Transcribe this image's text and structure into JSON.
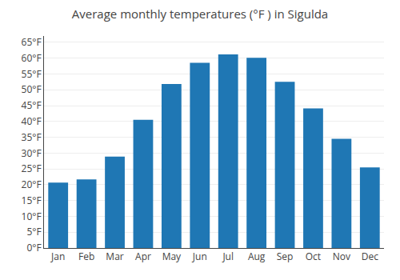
{
  "chart_data": {
    "type": "bar",
    "title": "Average monthly temperatures (°F ) in Sigulda",
    "categories": [
      "Jan",
      "Feb",
      "Mar",
      "Apr",
      "May",
      "Jun",
      "Jul",
      "Aug",
      "Sep",
      "Oct",
      "Nov",
      "Dec"
    ],
    "values": [
      20.7,
      21.7,
      28.9,
      40.5,
      51.8,
      58.5,
      61.2,
      60.1,
      52.5,
      44.1,
      34.5,
      25.5
    ],
    "ylim": [
      0,
      67
    ],
    "yticks": [
      {
        "value": 0,
        "label": "0°F"
      },
      {
        "value": 5,
        "label": "5°F"
      },
      {
        "value": 10,
        "label": "10°F"
      },
      {
        "value": 15,
        "label": "15°F"
      },
      {
        "value": 20,
        "label": "20°F"
      },
      {
        "value": 25,
        "label": "25°F"
      },
      {
        "value": 30,
        "label": "30°F"
      },
      {
        "value": 35,
        "label": "35°F"
      },
      {
        "value": 40,
        "label": "40°F"
      },
      {
        "value": 45,
        "label": "45°F"
      },
      {
        "value": 50,
        "label": "50°F"
      },
      {
        "value": 55,
        "label": "55°F"
      },
      {
        "value": 60,
        "label": "60°F"
      },
      {
        "value": 65,
        "label": "65°F"
      }
    ],
    "grid": true
  }
}
